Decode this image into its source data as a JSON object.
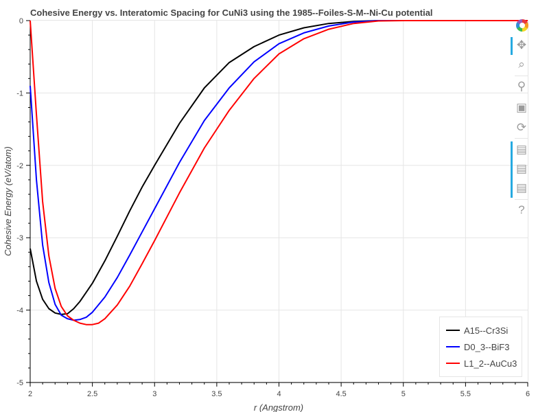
{
  "chart_data": {
    "type": "line",
    "title": "Cohesive Energy vs. Interatomic Spacing for CuNi3 using the 1985--Foiles-S-M--Ni-Cu potential",
    "xlabel": "r (Angstrom)",
    "ylabel": "Cohesive Energy (eV/atom)",
    "xlim": [
      2,
      6
    ],
    "ylim": [
      -5,
      0
    ],
    "x_ticks": [
      "2",
      "2.5",
      "3",
      "3.5",
      "4",
      "4.5",
      "5",
      "5.5",
      "6"
    ],
    "y_ticks": [
      "0",
      "-1",
      "-2",
      "-3",
      "-4",
      "-5"
    ],
    "grid": true,
    "legend_position": "bottom-right",
    "series": [
      {
        "name": "A15--Cr3Si",
        "color": "#000000",
        "x": [
          2.0,
          2.05,
          2.1,
          2.15,
          2.2,
          2.25,
          2.3,
          2.35,
          2.4,
          2.5,
          2.6,
          2.7,
          2.8,
          2.9,
          3.0,
          3.2,
          3.4,
          3.6,
          3.8,
          4.0,
          4.2,
          4.4,
          4.6,
          4.8,
          5.0,
          6.0
        ],
        "y": [
          -3.15,
          -3.6,
          -3.85,
          -3.98,
          -4.04,
          -4.06,
          -4.05,
          -3.98,
          -3.88,
          -3.63,
          -3.32,
          -2.98,
          -2.63,
          -2.3,
          -2.0,
          -1.42,
          -0.93,
          -0.58,
          -0.36,
          -0.2,
          -0.1,
          -0.04,
          -0.012,
          0.0,
          0.0,
          0.0
        ]
      },
      {
        "name": "D0_3--BiF3",
        "color": "#0000ff",
        "x": [
          2.0,
          2.05,
          2.1,
          2.15,
          2.2,
          2.25,
          2.3,
          2.35,
          2.4,
          2.45,
          2.5,
          2.6,
          2.7,
          2.8,
          2.9,
          3.0,
          3.2,
          3.4,
          3.6,
          3.8,
          4.0,
          4.2,
          4.4,
          4.6,
          4.8,
          5.0,
          6.0
        ],
        "y": [
          -0.9,
          -2.2,
          -3.1,
          -3.62,
          -3.92,
          -4.07,
          -4.12,
          -4.14,
          -4.13,
          -4.1,
          -4.03,
          -3.82,
          -3.55,
          -3.24,
          -2.92,
          -2.6,
          -1.96,
          -1.38,
          -0.93,
          -0.57,
          -0.32,
          -0.17,
          -0.075,
          -0.02,
          0.0,
          0.0,
          0.0
        ]
      },
      {
        "name": "L1_2--AuCu3",
        "color": "#ff0000",
        "x": [
          2.0,
          2.05,
          2.1,
          2.15,
          2.2,
          2.25,
          2.3,
          2.35,
          2.4,
          2.45,
          2.5,
          2.55,
          2.6,
          2.7,
          2.8,
          2.9,
          3.0,
          3.2,
          3.4,
          3.6,
          3.8,
          4.0,
          4.2,
          4.4,
          4.6,
          4.8,
          5.0,
          6.0
        ],
        "y": [
          0.0,
          -1.3,
          -2.5,
          -3.25,
          -3.7,
          -3.95,
          -4.08,
          -4.14,
          -4.18,
          -4.2,
          -4.2,
          -4.18,
          -4.12,
          -3.93,
          -3.67,
          -3.36,
          -3.04,
          -2.38,
          -1.76,
          -1.24,
          -0.8,
          -0.46,
          -0.25,
          -0.12,
          -0.04,
          -0.005,
          0.0,
          0.0
        ]
      }
    ]
  },
  "toolbar": {
    "tools": [
      "bokeh-logo-icon",
      "pan-icon",
      "box-zoom-icon",
      "wheel-zoom-icon",
      "save-icon",
      "reset-icon",
      "hover-icon",
      "hover-icon",
      "hover-icon",
      "help-icon"
    ]
  }
}
